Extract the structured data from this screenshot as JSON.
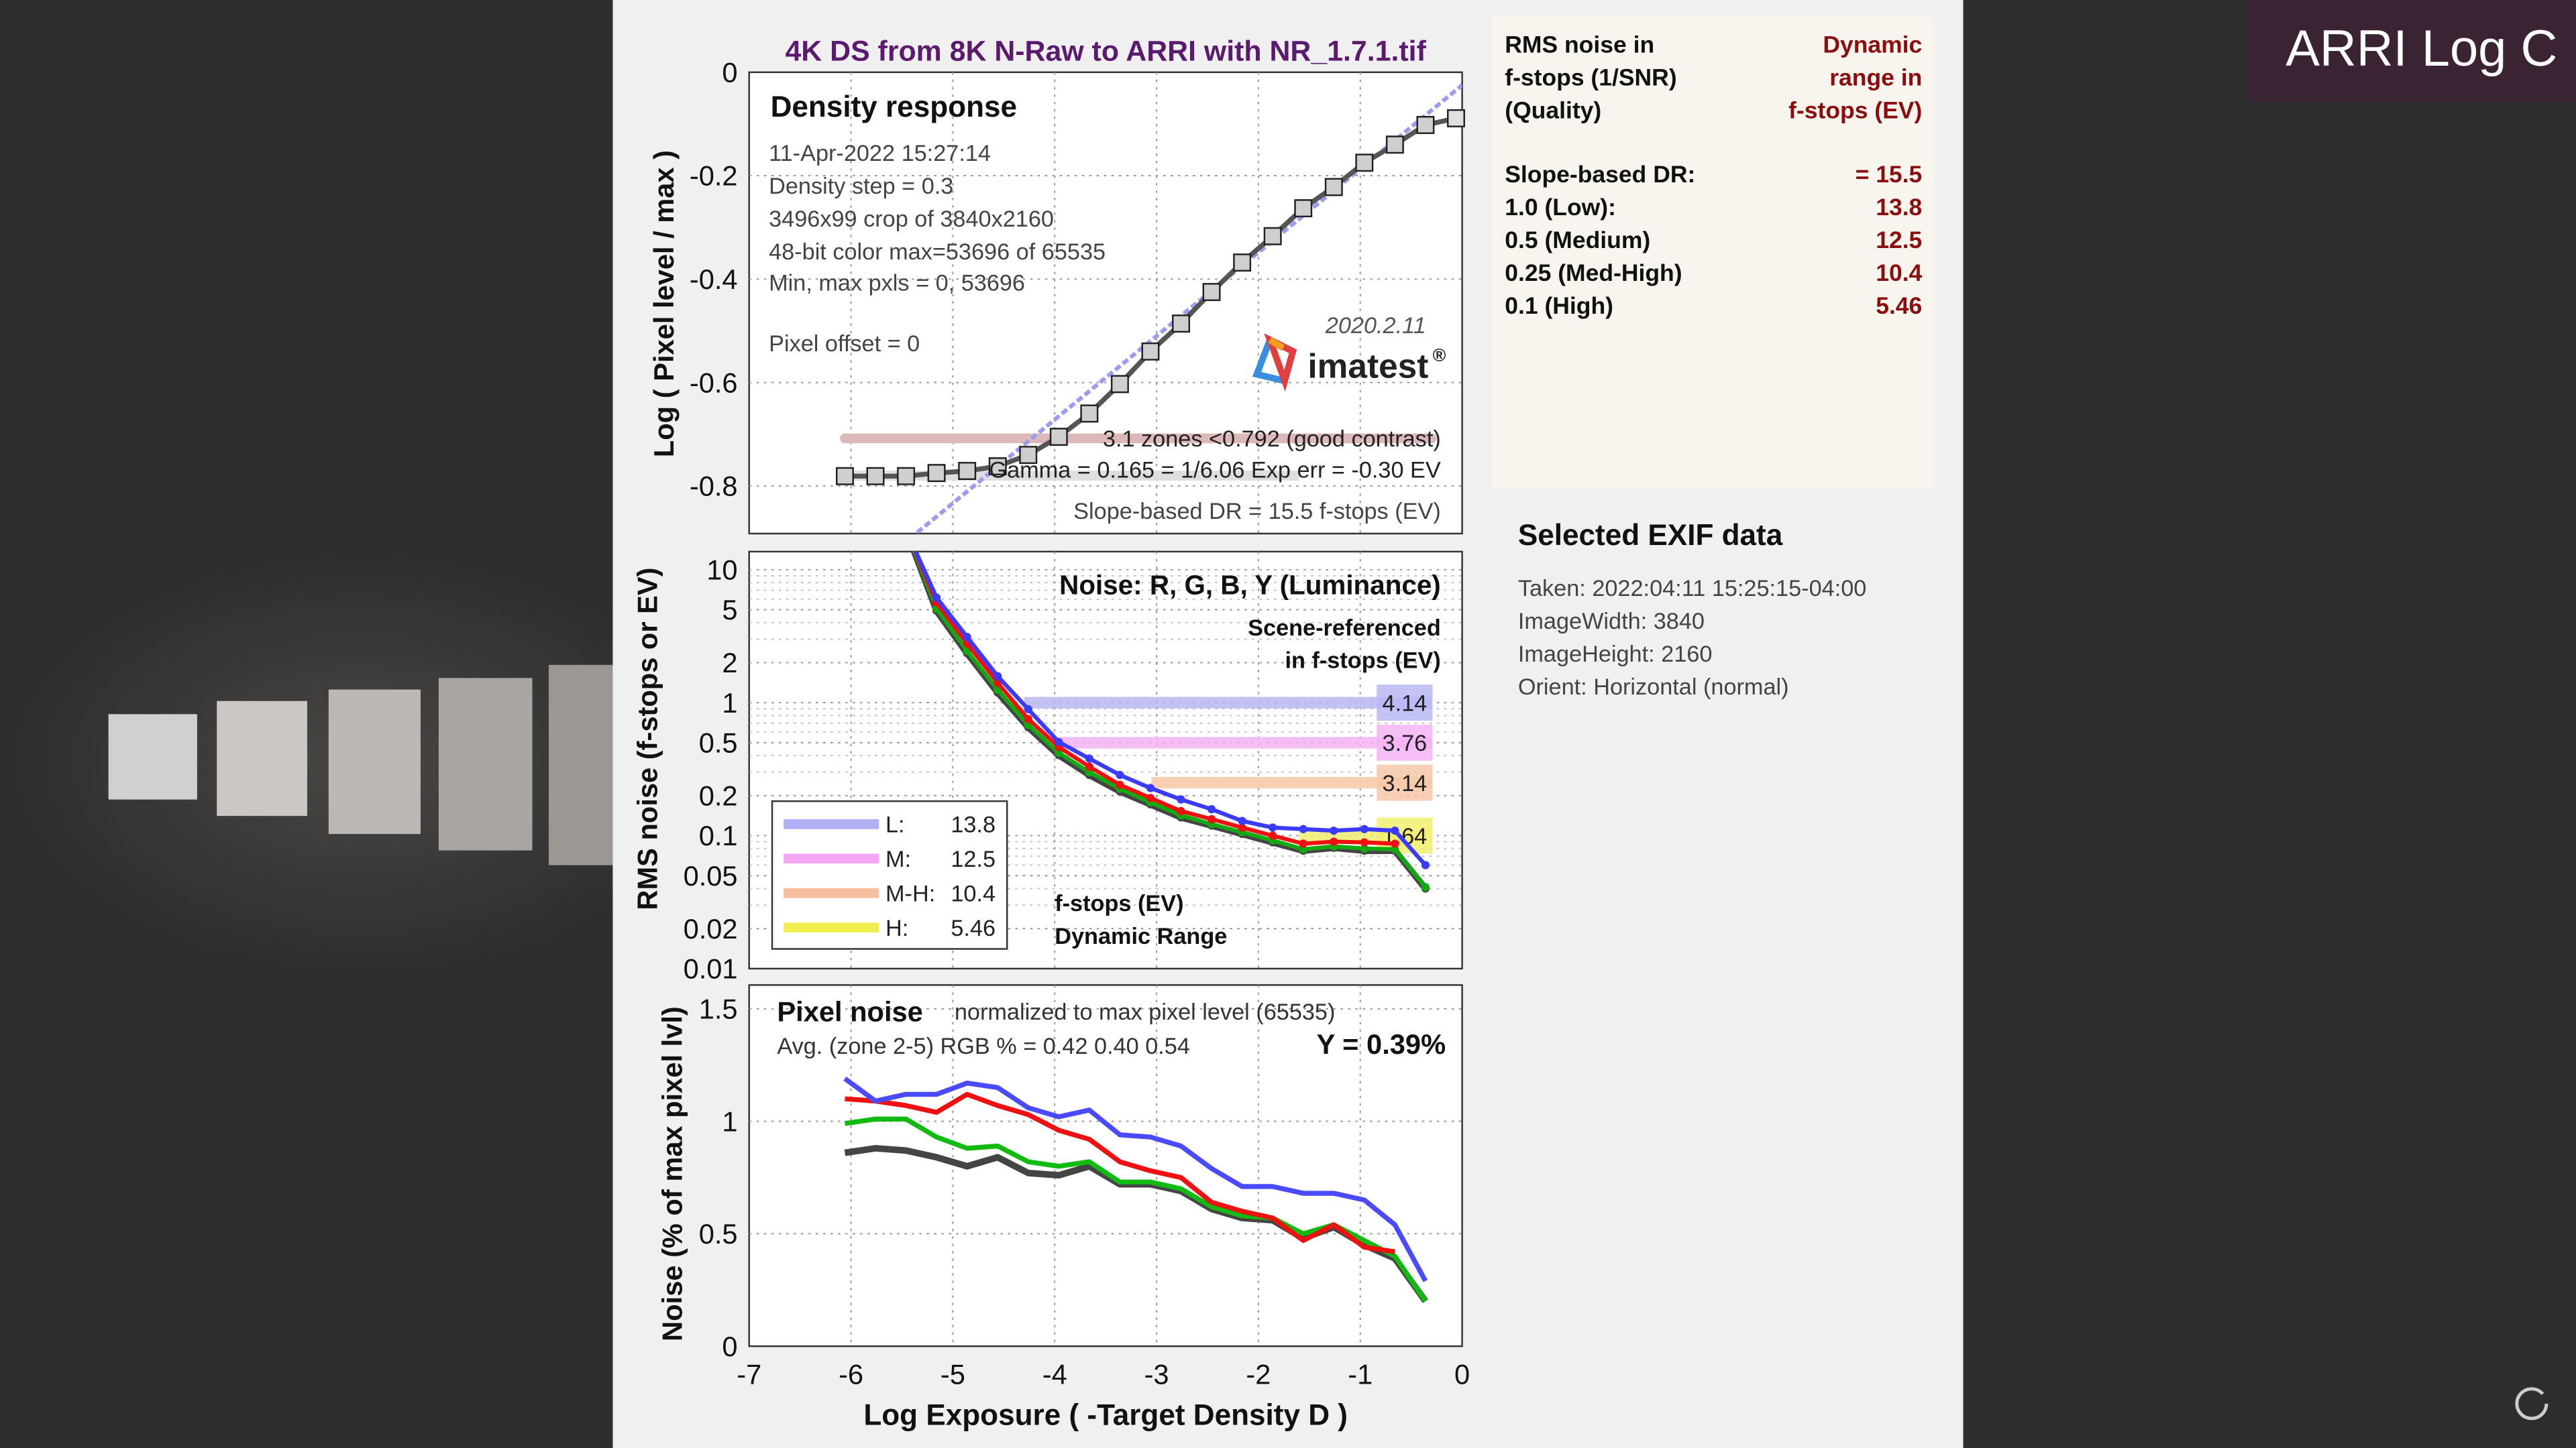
{
  "overlay": {
    "label": "ARRI Log C",
    "bg_color": "#3a2434"
  },
  "report": {
    "title": "4K DS from 8K N-Raw to ARRI with NR_1.7.1.tif",
    "title_color": "#5a1a6e",
    "xlabel": "Log Exposure ( -Target Density D )",
    "x_ticks": [
      "-7",
      "-6",
      "-5",
      "-4",
      "-3",
      "-2",
      "-1",
      "0"
    ]
  },
  "logo": {
    "version": "2020.2.11",
    "name": "imatest",
    "mark": "®"
  },
  "summary": {
    "left_header": [
      "RMS noise in",
      "f-stops (1/SNR)",
      "(Quality)"
    ],
    "right_header": [
      "Dynamic",
      "range in",
      "f-stops (EV)"
    ],
    "rows": [
      {
        "label": "Slope-based DR:",
        "value": "= 15.5"
      },
      {
        "label": "1.0   (Low):",
        "value": "13.8"
      },
      {
        "label": "0.5   (Medium)",
        "value": "12.5"
      },
      {
        "label": "0.25 (Med-High)",
        "value": "10.4"
      },
      {
        "label": "0.1   (High)",
        "value": "5.46"
      }
    ]
  },
  "exif": {
    "title": "Selected EXIF data",
    "lines": [
      "Taken: 2022:04:11 15:25:15-04:00",
      "ImageWidth:  3840",
      "ImageHeight:  2160",
      "Orient: Horizontal (normal)"
    ]
  },
  "chart_data": [
    {
      "type": "line",
      "title": "Density response",
      "ylabel": "Log ( Pixel level / max )",
      "xlim": [
        -7,
        0
      ],
      "ylim": [
        -0.9,
        0
      ],
      "y_ticks": [
        "0",
        "-0.2",
        "-0.4",
        "-0.6",
        "-0.8"
      ],
      "y_tick_values": [
        0,
        -0.2,
        -0.4,
        -0.6,
        -0.8
      ],
      "grid": true,
      "annotations": [
        "11-Apr-2022 15:27:14",
        "Density step = 0.3",
        "3496x99 crop of 3840x2160",
        "48-bit color  max=53696 of 65535",
        "Min, max pxls = 0, 53696",
        "Pixel offset = 0"
      ],
      "zones_text": "3.1 zones <0.792 (good contrast)",
      "gamma_text": "Gamma = 0.165 = 1/6.06  Exp err = -0.30 EV",
      "dr_text": "Slope-based DR = 15.5 f-stops (EV)",
      "zones_level": -0.708,
      "gamma_level": -0.78,
      "x": [
        -6.06,
        -5.76,
        -5.46,
        -5.16,
        -4.86,
        -4.56,
        -4.26,
        -3.96,
        -3.66,
        -3.36,
        -3.06,
        -2.76,
        -2.46,
        -2.16,
        -1.86,
        -1.56,
        -1.26,
        -0.96,
        -0.66,
        -0.36,
        -0.06
      ],
      "y": [
        -0.781,
        -0.781,
        -0.781,
        -0.775,
        -0.771,
        -0.762,
        -0.74,
        -0.705,
        -0.66,
        -0.603,
        -0.54,
        -0.486,
        -0.425,
        -0.368,
        -0.317,
        -0.263,
        -0.222,
        -0.175,
        -0.14,
        -0.102,
        -0.089
      ],
      "fit_line": {
        "x": [
          -5.35,
          0
        ],
        "y": [
          -0.89,
          -0.025
        ],
        "color": "#9c9cf0"
      }
    },
    {
      "type": "line",
      "title": "Noise: R, G, B, Y (Luminance)",
      "subtitle": [
        "Scene-referenced",
        "in f-stops (EV)"
      ],
      "ylabel": "RMS noise (f-stops or EV)",
      "yscale": "log",
      "xlim": [
        -7,
        0
      ],
      "ylim": [
        0.01,
        13.6
      ],
      "y_ticks": [
        "10",
        "5",
        "2",
        "1",
        "0.5",
        "0.2",
        "0.1",
        "0.05",
        "0.02",
        "0.01"
      ],
      "y_tick_values": [
        10,
        5,
        2,
        1,
        0.5,
        0.2,
        0.1,
        0.05,
        0.02,
        0.01
      ],
      "grid": true,
      "x": [
        -5.46,
        -5.16,
        -4.86,
        -4.56,
        -4.26,
        -3.96,
        -3.66,
        -3.36,
        -3.06,
        -2.76,
        -2.46,
        -2.16,
        -1.86,
        -1.56,
        -1.26,
        -0.96,
        -0.66,
        -0.36
      ],
      "series": [
        {
          "color": "#3b3bff",
          "values": [
            20,
            6.17,
            3.12,
            1.58,
            0.893,
            0.506,
            0.38,
            0.286,
            0.228,
            0.187,
            0.158,
            0.129,
            0.115,
            0.112,
            0.109,
            0.112,
            0.109,
            0.06
          ]
        },
        {
          "color": "#ee1111",
          "values": [
            20,
            5.66,
            2.78,
            1.41,
            0.753,
            0.464,
            0.33,
            0.241,
            0.192,
            0.153,
            0.133,
            0.115,
            0.1,
            0.087,
            0.09,
            0.089,
            0.087,
            null
          ]
        },
        {
          "color": "#11aa11",
          "values": [
            20,
            5.1,
            2.45,
            1.25,
            0.68,
            0.42,
            0.3,
            0.225,
            0.178,
            0.142,
            0.122,
            0.106,
            0.092,
            0.079,
            0.083,
            0.08,
            0.079,
            0.041
          ]
        },
        {
          "color": "#444444",
          "values": [
            20,
            4.91,
            2.35,
            1.19,
            0.653,
            0.403,
            0.286,
            0.215,
            0.172,
            0.137,
            0.119,
            0.103,
            0.089,
            0.077,
            0.081,
            0.077,
            0.077,
            0.04
          ]
        }
      ],
      "thresholds": [
        {
          "level": 1,
          "from_x": -4.3,
          "label": "4.14",
          "color": "#b8b8f4"
        },
        {
          "level": 0.5,
          "from_x": -3.95,
          "label": "3.76",
          "color": "#f4b4f4"
        },
        {
          "level": 0.25,
          "from_x": -3.05,
          "label": "3.14",
          "color": "#f6c8a8"
        },
        {
          "level": 0.1,
          "from_x": -1.6,
          "label": "1.64",
          "color": "#f2ee70"
        }
      ],
      "legend": [
        {
          "key": "L:",
          "value": "13.8",
          "color": "#b0b0f4"
        },
        {
          "key": "M:",
          "value": "12.5",
          "color": "#f4a8f4"
        },
        {
          "key": "M-H:",
          "value": "10.4",
          "color": "#f6c0a0"
        },
        {
          "key": "H:",
          "value": "5.46",
          "color": "#f2ee50"
        }
      ],
      "legend_placement": "bottom-left",
      "dr_label": [
        "f-stops (EV)",
        "Dynamic Range"
      ]
    },
    {
      "type": "line",
      "title": "Pixel noise",
      "subtitle": "normalized to max pixel level (65535)",
      "avg_text": "Avg. (zone 2-5) RGB % = 0.42  0.40  0.54",
      "y_text": "Y = 0.39%",
      "ylabel": "Noise (% of max pixel lvl)",
      "xlim": [
        -7,
        0
      ],
      "ylim": [
        0,
        1.6
      ],
      "y_ticks": [
        "1.5",
        "1",
        "0.5",
        "0"
      ],
      "y_tick_values": [
        1.5,
        1,
        0.5,
        0
      ],
      "grid": true,
      "x": [
        -6.06,
        -5.76,
        -5.46,
        -5.16,
        -4.86,
        -4.56,
        -4.26,
        -3.96,
        -3.66,
        -3.36,
        -3.06,
        -2.76,
        -2.46,
        -2.16,
        -1.86,
        -1.56,
        -1.26,
        -0.96,
        -0.66,
        -0.36
      ],
      "series": [
        {
          "color": "#4a4aff",
          "values": [
            1.19,
            1.09,
            1.12,
            1.12,
            1.17,
            1.15,
            1.06,
            1.02,
            1.05,
            0.94,
            0.93,
            0.89,
            0.79,
            0.71,
            0.71,
            0.68,
            0.68,
            0.65,
            0.54,
            0.29
          ]
        },
        {
          "color": "#ee1111",
          "values": [
            1.1,
            1.09,
            1.07,
            1.04,
            1.12,
            1.07,
            1.03,
            0.96,
            0.92,
            0.82,
            0.78,
            0.75,
            0.64,
            0.6,
            0.57,
            0.47,
            0.54,
            0.44,
            0.42,
            null
          ]
        },
        {
          "color": "#11bb11",
          "values": [
            0.99,
            1.01,
            1.01,
            0.93,
            0.88,
            0.89,
            0.82,
            0.8,
            0.82,
            0.73,
            0.73,
            0.7,
            0.62,
            0.58,
            0.57,
            0.5,
            0.54,
            0.47,
            0.4,
            0.2
          ]
        },
        {
          "color": "#444444",
          "values": [
            0.86,
            0.88,
            0.87,
            0.84,
            0.8,
            0.84,
            0.77,
            0.76,
            0.8,
            0.72,
            0.72,
            0.69,
            0.61,
            0.57,
            0.56,
            0.48,
            0.53,
            0.45,
            0.39,
            0.2
          ]
        }
      ]
    }
  ]
}
